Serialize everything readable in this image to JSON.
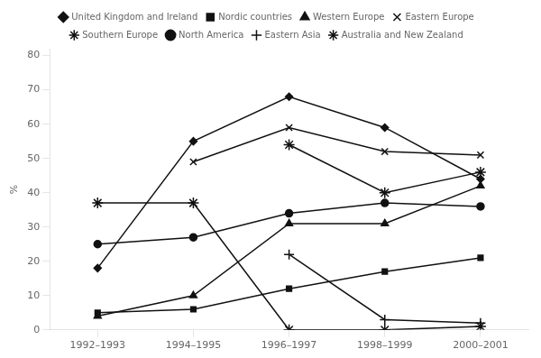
{
  "chart_data": {
    "type": "line",
    "categories": [
      "1992–1993",
      "1994–1995",
      "1996–1997",
      "1998–1999",
      "2000–2001"
    ],
    "series": [
      {
        "name": "United Kingdom and Ireland",
        "color": "#111111",
        "marker": "diamond",
        "values": [
          18,
          55,
          68,
          59,
          44
        ]
      },
      {
        "name": "Nordic countries",
        "color": "#111111",
        "marker": "square",
        "values": [
          5,
          6,
          12,
          17,
          21
        ]
      },
      {
        "name": "Western Europe",
        "color": "#111111",
        "marker": "triangle",
        "values": [
          4,
          10,
          31,
          31,
          42
        ]
      },
      {
        "name": "Eastern Europe",
        "color": "#111111",
        "marker": "x",
        "values": [
          null,
          49,
          59,
          52,
          51
        ]
      },
      {
        "name": "Southern Europe",
        "color": "#111111",
        "marker": "star",
        "values": [
          null,
          null,
          54,
          40,
          46
        ]
      },
      {
        "name": "North America",
        "color": "#111111",
        "marker": "circle",
        "values": [
          25,
          27,
          34,
          37,
          36
        ]
      },
      {
        "name": "Eastern Asia",
        "color": "#111111",
        "marker": "plus",
        "values": [
          null,
          null,
          22,
          3,
          2
        ]
      },
      {
        "name": "Australia and New Zealand",
        "color": "#111111",
        "marker": "star",
        "values": [
          37,
          37,
          0,
          0,
          1
        ]
      }
    ],
    "ylabel": "%",
    "ylim": [
      0,
      82
    ],
    "yticks": [
      0,
      10,
      20,
      30,
      40,
      50,
      60,
      70,
      80
    ],
    "grid": false,
    "legend": "top"
  }
}
